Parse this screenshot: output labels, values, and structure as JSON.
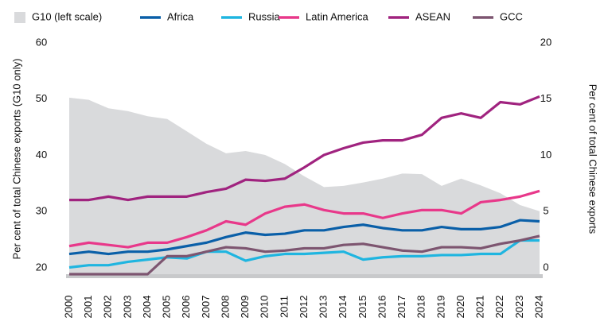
{
  "chart_data": {
    "type": "line",
    "y_label": "Per cent of total Chinese exports (G10 only)",
    "y2_label": "Per cent of total Chinese exports",
    "x": [
      2000,
      2001,
      2002,
      2003,
      2004,
      2005,
      2006,
      2007,
      2008,
      2009,
      2010,
      2011,
      2012,
      2013,
      2014,
      2015,
      2016,
      2017,
      2018,
      2019,
      2020,
      2021,
      2022,
      2023,
      2024
    ],
    "xlim": [
      2000,
      2024
    ],
    "ylim": [
      20,
      60
    ],
    "yticks": [
      20,
      30,
      40,
      50,
      60
    ],
    "y2lim": [
      0,
      20
    ],
    "y2ticks": [
      0,
      5,
      10,
      15,
      20
    ],
    "series": [
      {
        "name": "G10 (left scale)",
        "type": "area",
        "axis": "y",
        "color": "#d9dadc",
        "values": [
          51.4,
          51.0,
          49.5,
          49.0,
          48.1,
          47.6,
          45.4,
          43.2,
          41.5,
          41.9,
          41.2,
          39.6,
          37.4,
          35.5,
          35.7,
          36.3,
          37.0,
          37.9,
          37.8,
          35.7,
          37.0,
          35.8,
          34.4,
          32.3,
          31.2
        ]
      },
      {
        "name": "Africa",
        "axis": "y2",
        "color": "#0a5fa8",
        "values": [
          1.8,
          2.0,
          1.8,
          2.0,
          2.0,
          2.2,
          2.5,
          2.8,
          3.3,
          3.7,
          3.5,
          3.6,
          3.9,
          3.9,
          4.2,
          4.4,
          4.1,
          3.9,
          3.9,
          4.2,
          4.0,
          4.0,
          4.2,
          4.8,
          4.7
        ]
      },
      {
        "name": "Russia",
        "axis": "y2",
        "color": "#1fb5e0",
        "values": [
          0.6,
          0.8,
          0.8,
          1.1,
          1.3,
          1.5,
          1.4,
          2.0,
          2.0,
          1.2,
          1.6,
          1.8,
          1.8,
          1.9,
          2.0,
          1.3,
          1.5,
          1.6,
          1.6,
          1.7,
          1.7,
          1.8,
          1.8,
          3.0,
          3.0
        ]
      },
      {
        "name": "Latin America",
        "axis": "y2",
        "color": "#e8388a",
        "values": [
          2.5,
          2.8,
          2.6,
          2.4,
          2.8,
          2.8,
          3.3,
          3.9,
          4.7,
          4.4,
          5.4,
          6.0,
          6.2,
          5.7,
          5.4,
          5.4,
          5.0,
          5.4,
          5.7,
          5.7,
          5.4,
          6.4,
          6.6,
          6.9,
          7.4
        ]
      },
      {
        "name": "ASEAN",
        "axis": "y2",
        "color": "#a0237f",
        "values": [
          6.6,
          6.6,
          6.9,
          6.6,
          6.9,
          6.9,
          6.9,
          7.3,
          7.6,
          8.4,
          8.3,
          8.5,
          9.5,
          10.6,
          11.2,
          11.7,
          11.9,
          11.9,
          12.4,
          13.9,
          14.3,
          13.9,
          15.3,
          15.1,
          15.8
        ]
      },
      {
        "name": "GCC",
        "axis": "y2",
        "color": "#7d5570",
        "values": [
          0,
          0,
          0,
          0,
          0,
          1.6,
          1.6,
          2.0,
          2.4,
          2.3,
          2.0,
          2.1,
          2.3,
          2.3,
          2.6,
          2.7,
          2.4,
          2.1,
          2.0,
          2.4,
          2.4,
          2.3,
          2.7,
          3.0,
          3.4
        ]
      }
    ]
  }
}
